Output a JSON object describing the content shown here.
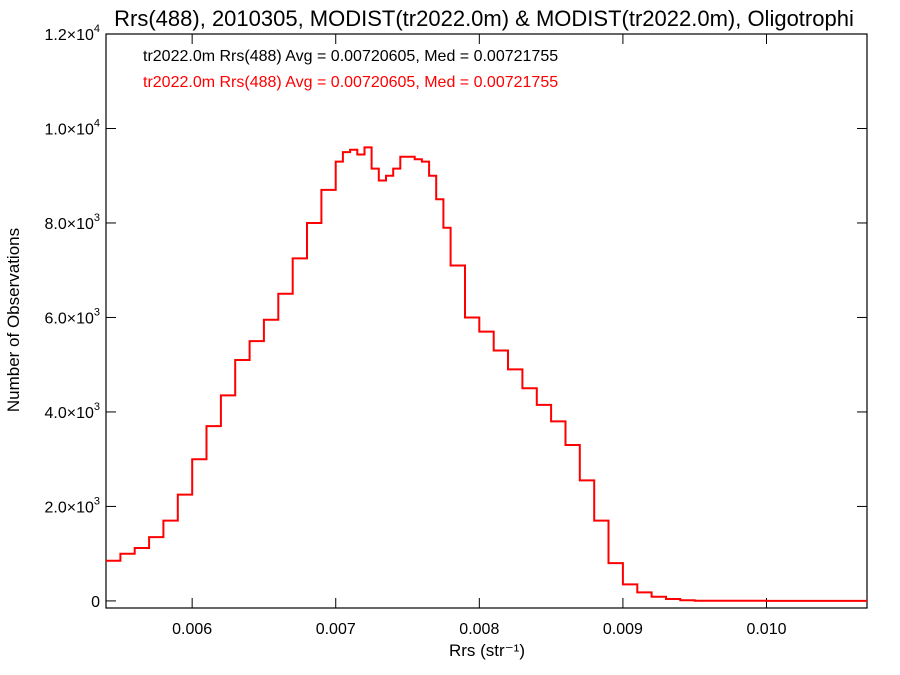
{
  "chart_data": {
    "type": "line",
    "title": "Rrs(488), 2010305, MODIST(tr2022.0m) & MODIST(tr2022.0m), Oligotrophi",
    "xlabel": "Rrs (str⁻¹)",
    "ylabel": "Number of Observations",
    "xlim": [
      0.0054,
      0.0107
    ],
    "ylim": [
      -150,
      12000
    ],
    "x_ticks": [
      {
        "value": 0.006,
        "label": "0.006"
      },
      {
        "value": 0.007,
        "label": "0.007"
      },
      {
        "value": 0.008,
        "label": "0.008"
      },
      {
        "value": 0.009,
        "label": "0.009"
      },
      {
        "value": 0.01,
        "label": "0.010"
      }
    ],
    "y_ticks": [
      {
        "value": 0,
        "mant": "0",
        "exp": ""
      },
      {
        "value": 2000,
        "mant": "2.0×10",
        "exp": "3"
      },
      {
        "value": 4000,
        "mant": "4.0×10",
        "exp": "3"
      },
      {
        "value": 6000,
        "mant": "6.0×10",
        "exp": "3"
      },
      {
        "value": 8000,
        "mant": "8.0×10",
        "exp": "3"
      },
      {
        "value": 10000,
        "mant": "1.0×10",
        "exp": "4"
      },
      {
        "value": 12000,
        "mant": "1.2×10",
        "exp": "4"
      }
    ],
    "legend": [
      {
        "text": "tr2022.0m Rrs(488) Avg = 0.00720605, Med = 0.00721755",
        "color": "#000000"
      },
      {
        "text": "tr2022.0m Rrs(488) Avg = 0.00720605, Med = 0.00721755",
        "color": "#ff0000"
      }
    ],
    "legend_position": "top-left",
    "grid": false,
    "series": [
      {
        "color": "#ff0000",
        "step": true,
        "points": [
          [
            0.0054,
            850
          ],
          [
            0.0055,
            1000
          ],
          [
            0.0056,
            1120
          ],
          [
            0.0057,
            1350
          ],
          [
            0.0058,
            1700
          ],
          [
            0.0059,
            2250
          ],
          [
            0.006,
            3000
          ],
          [
            0.0061,
            3700
          ],
          [
            0.0062,
            4350
          ],
          [
            0.0063,
            5100
          ],
          [
            0.0064,
            5500
          ],
          [
            0.0065,
            5950
          ],
          [
            0.0066,
            6500
          ],
          [
            0.0067,
            7250
          ],
          [
            0.0068,
            8000
          ],
          [
            0.0069,
            8700
          ],
          [
            0.007,
            9300
          ],
          [
            0.00705,
            9500
          ],
          [
            0.0071,
            9550
          ],
          [
            0.00715,
            9450
          ],
          [
            0.0072,
            9600
          ],
          [
            0.00725,
            9150
          ],
          [
            0.0073,
            8900
          ],
          [
            0.00735,
            9000
          ],
          [
            0.0074,
            9150
          ],
          [
            0.00745,
            9400
          ],
          [
            0.0075,
            9400
          ],
          [
            0.00755,
            9350
          ],
          [
            0.0076,
            9300
          ],
          [
            0.00765,
            9000
          ],
          [
            0.0077,
            8500
          ],
          [
            0.00775,
            7900
          ],
          [
            0.0078,
            7100
          ],
          [
            0.0079,
            6000
          ],
          [
            0.008,
            5700
          ],
          [
            0.0081,
            5300
          ],
          [
            0.0082,
            4900
          ],
          [
            0.0083,
            4500
          ],
          [
            0.0084,
            4150
          ],
          [
            0.0085,
            3800
          ],
          [
            0.0086,
            3300
          ],
          [
            0.0087,
            2550
          ],
          [
            0.0088,
            1700
          ],
          [
            0.0089,
            800
          ],
          [
            0.009,
            350
          ],
          [
            0.0091,
            180
          ],
          [
            0.0092,
            90
          ],
          [
            0.0093,
            40
          ],
          [
            0.0094,
            15
          ],
          [
            0.0095,
            5
          ],
          [
            0.01,
            0
          ],
          [
            0.0106,
            0
          ],
          [
            0.0107,
            0
          ]
        ]
      }
    ]
  }
}
